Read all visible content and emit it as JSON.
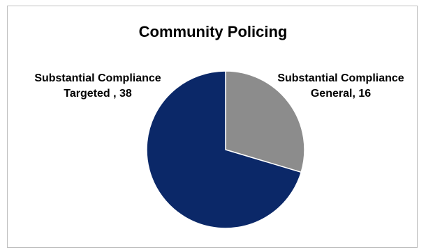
{
  "chart_data": {
    "type": "pie",
    "title": "Community Policing",
    "slices": [
      {
        "line1": "Substantial Compliance",
        "line2": "General, 16",
        "value": 16,
        "color": "#8c8c8c"
      },
      {
        "line1": "Substantial Compliance",
        "line2": "Targeted , 38",
        "value": 38,
        "color": "#0b2868"
      }
    ],
    "start_angle_deg": 0,
    "direction": "clockwise",
    "legend": "none"
  }
}
